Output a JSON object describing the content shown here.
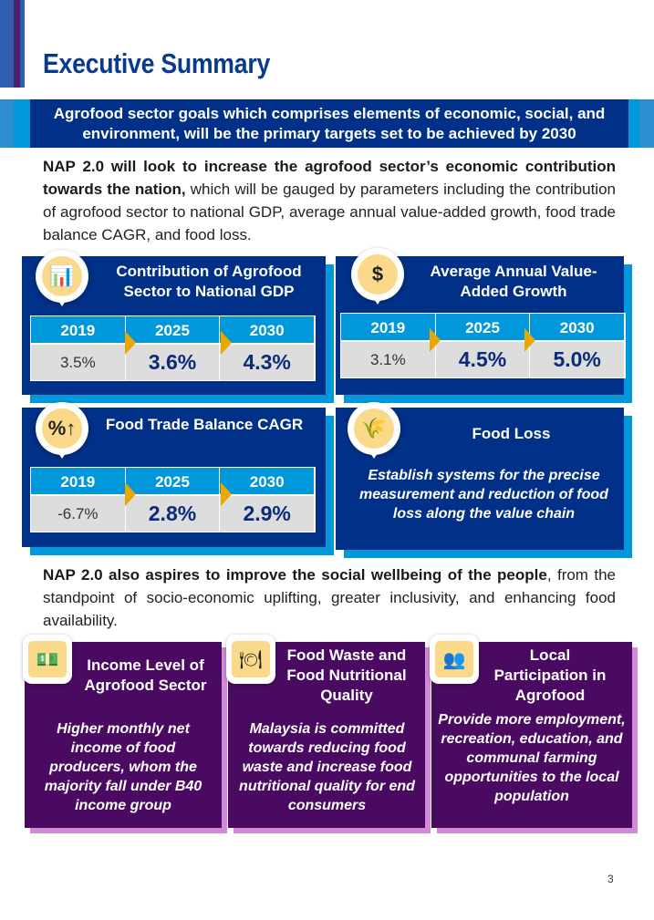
{
  "title": "Executive Summary",
  "banner": "Agrofood sector goals which comprises elements of economic, social, and environment, will be the primary targets set to be achieved by 2030",
  "para1": {
    "bold": "NAP 2.0 will look to increase the agrofood sector’s economic contribution towards the nation,",
    "rest": " which will be gauged by parameters including the contribution of agrofood sector to national GDP, average annual value-added growth, food trade balance CAGR, and food loss."
  },
  "economic_cards": [
    {
      "title": "Contribution of Agrofood Sector to National GDP",
      "icon": "chart-growth-icon",
      "years": [
        "2019",
        "2025",
        "2030"
      ],
      "values": [
        "3.5%",
        "3.6%",
        "4.3%"
      ]
    },
    {
      "title": "Average Annual Value-Added Growth",
      "icon": "money-growth-icon",
      "years": [
        "2019",
        "2025",
        "2030"
      ],
      "values": [
        "3.1%",
        "4.5%",
        "5.0%"
      ]
    },
    {
      "title": "Food Trade Balance CAGR",
      "icon": "percent-up-icon",
      "years": [
        "2019",
        "2025",
        "2030"
      ],
      "values": [
        "-6.7%",
        "2.8%",
        "2.9%"
      ]
    },
    {
      "title": "Food Loss",
      "icon": "wheat-icon",
      "text": "Establish systems for the precise measurement and reduction of food loss along the value chain"
    }
  ],
  "para2": {
    "bold": "NAP 2.0 also aspires to improve the social wellbeing of the people",
    "rest": ", from the standpoint of socio-economic uplifting, greater inclusivity, and enhancing food availability."
  },
  "social_cards": [
    {
      "title": "Income Level of Agrofood Sector",
      "icon": "money-stack-icon",
      "text": "Higher monthly net income of food producers, whom the majority fall under B40 income group"
    },
    {
      "title": "Food Waste and Food Nutritional Quality",
      "icon": "plate-cutlery-icon",
      "text": "Malaysia is committed towards reducing food waste and increase food nutritional quality for end consumers"
    },
    {
      "title": "Local Participation in Agrofood",
      "icon": "community-icon",
      "text": "Provide more employment, recreation, education, and communal farming opportunities to the local population"
    }
  ],
  "page_number": "3"
}
